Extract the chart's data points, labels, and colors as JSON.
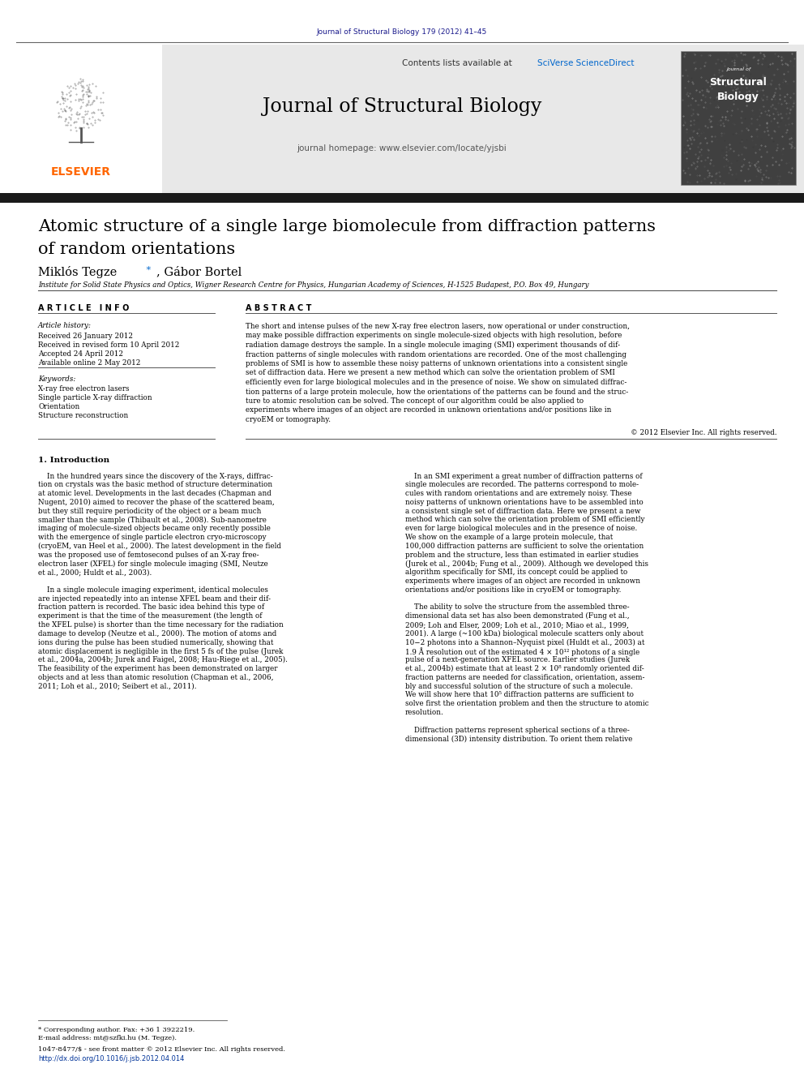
{
  "journal_ref": "Journal of Structural Biology 179 (2012) 41–45",
  "journal_ref_color": "#1a1a8c",
  "contents_text": "Contents lists available at ",
  "sciverse_text": "SciVerse ScienceDirect",
  "sciverse_color": "#0066cc",
  "journal_title": "Journal of Structural Biology",
  "journal_homepage_text": "journal homepage: www.elsevier.com/locate/yjsbi",
  "elsevier_color": "#FF6600",
  "elsevier_text": "ELSEVIER",
  "paper_title_line1": "Atomic structure of a single large biomolecule from diffraction patterns",
  "paper_title_line2": "of random orientations",
  "affiliation": "Institute for Solid State Physics and Optics, Wigner Research Centre for Physics, Hungarian Academy of Sciences, H-1525 Budapest, P.O. Box 49, Hungary",
  "article_info_header": "A R T I C L E   I N F O",
  "abstract_header": "A B S T R A C T",
  "article_history_label": "Article history:",
  "received1": "Received 26 January 2012",
  "received2": "Received in revised form 10 April 2012",
  "accepted": "Accepted 24 April 2012",
  "available": "Available online 2 May 2012",
  "keywords_label": "Keywords:",
  "keyword1": "X-ray free electron lasers",
  "keyword2": "Single particle X-ray diffraction",
  "keyword3": "Orientation",
  "keyword4": "Structure reconstruction",
  "copyright": "© 2012 Elsevier Inc. All rights reserved.",
  "intro_header": "1. Introduction",
  "footnote_star": "* Corresponding author. Fax: +36 1 3922219.",
  "footnote_email": "E-mail address: mt@szfki.hu (M. Tegze).",
  "footer_line1": "1047-8477/$ - see front matter © 2012 Elsevier Inc. All rights reserved.",
  "footer_line2": "http://dx.doi.org/10.1016/j.jsb.2012.04.014",
  "footer_color": "#003399",
  "bg_color": "#ffffff",
  "header_bg": "#e8e8e8",
  "dark_bar_color": "#1a1a1a",
  "link_color": "#0066cc",
  "abstract_lines": [
    "The short and intense pulses of the new X-ray free electron lasers, now operational or under construction,",
    "may make possible diffraction experiments on single molecule-sized objects with high resolution, before",
    "radiation damage destroys the sample. In a single molecule imaging (SMI) experiment thousands of dif-",
    "fraction patterns of single molecules with random orientations are recorded. One of the most challenging",
    "problems of SMI is how to assemble these noisy patterns of unknown orientations into a consistent single",
    "set of diffraction data. Here we present a new method which can solve the orientation problem of SMI",
    "efficiently even for large biological molecules and in the presence of noise. We show on simulated diffrac-",
    "tion patterns of a large protein molecule, how the orientations of the patterns can be found and the struc-",
    "ture to atomic resolution can be solved. The concept of our algorithm could be also applied to",
    "experiments where images of an object are recorded in unknown orientations and/or positions like in",
    "cryoEM or tomography."
  ],
  "intro_left_lines": [
    "    In the hundred years since the discovery of the X-rays, diffrac-",
    "tion on crystals was the basic method of structure determination",
    "at atomic level. Developments in the last decades (Chapman and",
    "Nugent, 2010) aimed to recover the phase of the scattered beam,",
    "but they still require periodicity of the object or a beam much",
    "smaller than the sample (Thibault et al., 2008). Sub-nanometre",
    "imaging of molecule-sized objects became only recently possible",
    "with the emergence of single particle electron cryo-microscopy",
    "(cryoEM, van Heel et al., 2000). The latest development in the field",
    "was the proposed use of femtosecond pulses of an X-ray free-",
    "electron laser (XFEL) for single molecule imaging (SMI, Neutze",
    "et al., 2000; Huldt et al., 2003).",
    "",
    "    In a single molecule imaging experiment, identical molecules",
    "are injected repeatedly into an intense XFEL beam and their dif-",
    "fraction pattern is recorded. The basic idea behind this type of",
    "experiment is that the time of the measurement (the length of",
    "the XFEL pulse) is shorter than the time necessary for the radiation",
    "damage to develop (Neutze et al., 2000). The motion of atoms and",
    "ions during the pulse has been studied numerically, showing that",
    "atomic displacement is negligible in the first 5 fs of the pulse (Jurek",
    "et al., 2004a, 2004b; Jurek and Faigel, 2008; Hau-Riege et al., 2005).",
    "The feasibility of the experiment has been demonstrated on larger",
    "objects and at less than atomic resolution (Chapman et al., 2006,",
    "2011; Loh et al., 2010; Seibert et al., 2011)."
  ],
  "intro_right_lines": [
    "    In an SMI experiment a great number of diffraction patterns of",
    "single molecules are recorded. The patterns correspond to mole-",
    "cules with random orientations and are extremely noisy. These",
    "noisy patterns of unknown orientations have to be assembled into",
    "a consistent single set of diffraction data. Here we present a new",
    "method which can solve the orientation problem of SMI efficiently",
    "even for large biological molecules and in the presence of noise.",
    "We show on the example of a large protein molecule, that",
    "100,000 diffraction patterns are sufficient to solve the orientation",
    "problem and the structure, less than estimated in earlier studies",
    "(Jurek et al., 2004b; Fung et al., 2009). Although we developed this",
    "algorithm specifically for SMI, its concept could be applied to",
    "experiments where images of an object are recorded in unknown",
    "orientations and/or positions like in cryoEM or tomography.",
    "",
    "    The ability to solve the structure from the assembled three-",
    "dimensional data set has also been demonstrated (Fung et al.,",
    "2009; Loh and Elser, 2009; Loh et al., 2010; Miao et al., 1999,",
    "2001). A large (~100 kDa) biological molecule scatters only about",
    "10−2 photons into a Shannon–Nyquist pixel (Huldt et al., 2003) at",
    "1.9 Å resolution out of the estimated 4 × 10¹² photons of a single",
    "pulse of a next-generation XFEL source. Earlier studies (Jurek",
    "et al., 2004b) estimate that at least 2 × 10⁸ randomly oriented dif-",
    "fraction patterns are needed for classification, orientation, assem-",
    "bly and successful solution of the structure of such a molecule.",
    "We will show here that 10⁵ diffraction patterns are sufficient to",
    "solve first the orientation problem and then the structure to atomic",
    "resolution.",
    "",
    "    Diffraction patterns represent spherical sections of a three-",
    "dimensional (3D) intensity distribution. To orient them relative"
  ]
}
